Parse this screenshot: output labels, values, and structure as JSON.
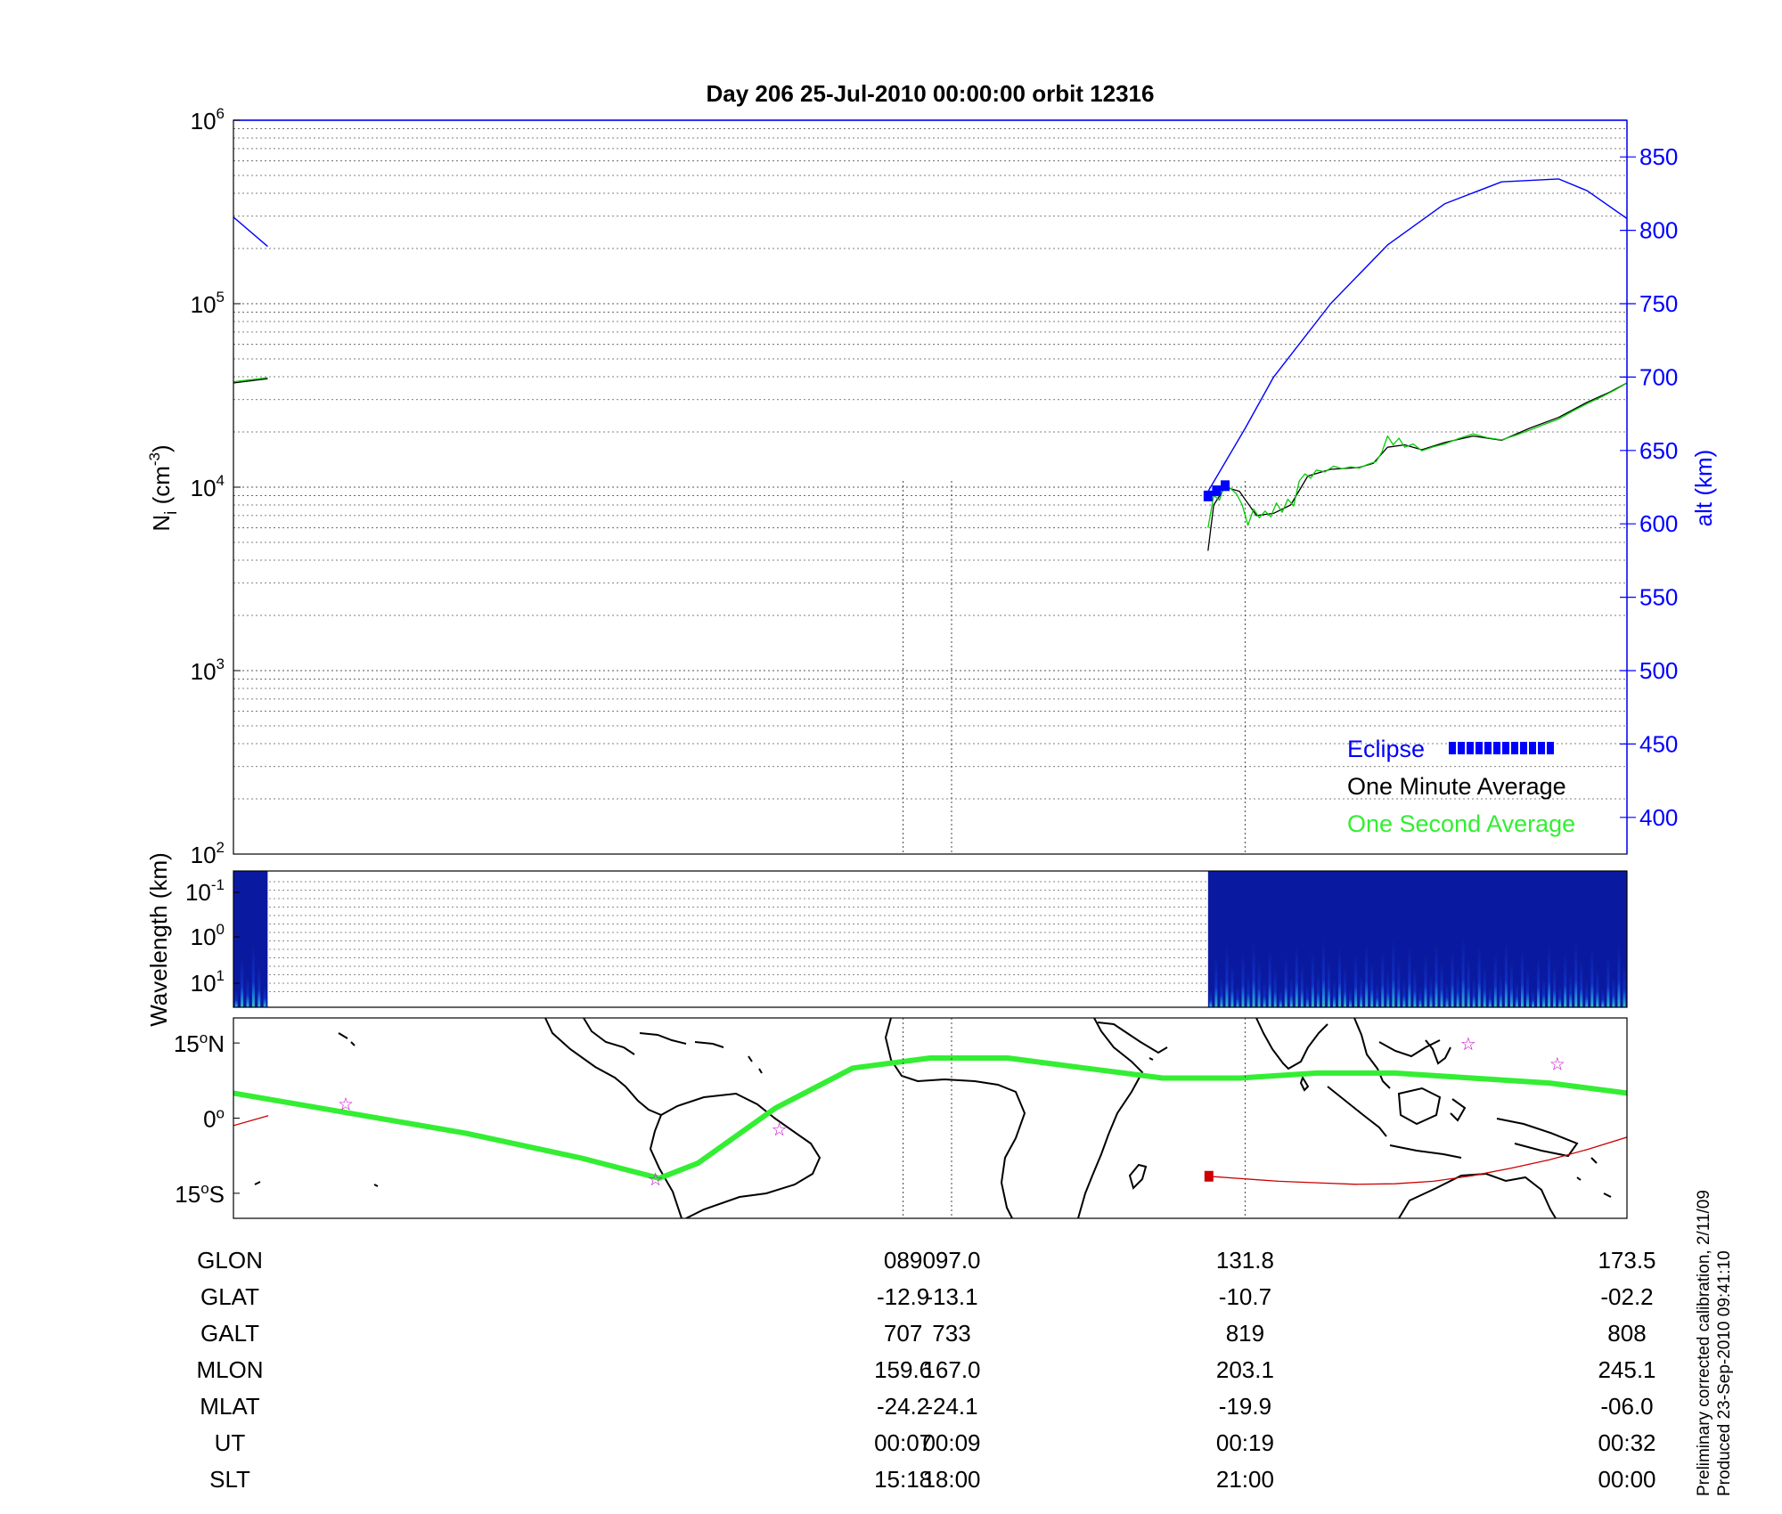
{
  "title": "Day 206  25-Jul-2010 00:00:00   orbit 12316",
  "colors": {
    "altitude": "#0000ff",
    "one_minute": "#000000",
    "one_second": "#00cc00",
    "eclipse": "#0000ff",
    "ground_track": "#33ee33",
    "sat_track": "#cc0000",
    "stars": "#cc00cc",
    "spectrogram_bg": "#0a1aa0"
  },
  "chart_data": [
    {
      "type": "line",
      "panel": "ion density and altitude",
      "ylabel_left": "N_i (cm^-3)",
      "ylabel_right": "alt (km)",
      "yscale_left": "log",
      "ylim_left": [
        100,
        1000000
      ],
      "left_ticks": [
        {
          "base": "10",
          "exp": "2"
        },
        {
          "base": "10",
          "exp": "3"
        },
        {
          "base": "10",
          "exp": "4"
        },
        {
          "base": "10",
          "exp": "5"
        },
        {
          "base": "10",
          "exp": "6"
        }
      ],
      "ylim_right": [
        375,
        875
      ],
      "right_ticks": [
        "400",
        "450",
        "500",
        "550",
        "600",
        "650",
        "700",
        "750",
        "800",
        "850"
      ],
      "xlim_minutes": [
        -16.5,
        32.4
      ],
      "grid": true,
      "legend_placement": "bottom-right",
      "legend": {
        "eclipse": "Eclipse",
        "one_minute": "One Minute Average",
        "one_second": "One Second Average"
      },
      "series": [
        {
          "name": "alt (km)",
          "axis": "right",
          "segments": [
            {
              "x": [
                -16.5,
                -15.3
              ],
              "y": [
                809,
                789
              ]
            },
            {
              "x": [
                17.7,
                19.0,
                20.0,
                22.0,
                24.0,
                26.0,
                28.0,
                30.0,
                31.0,
                32.4
              ],
              "y": [
                622,
                665,
                700,
                750,
                790,
                818,
                833,
                835,
                827,
                808
              ]
            }
          ]
        },
        {
          "name": "One Minute Average",
          "axis": "left",
          "segments": [
            {
              "x": [
                -16.5,
                -15.3
              ],
              "y": [
                37000,
                39000
              ]
            },
            {
              "x": [
                17.7,
                17.9,
                18.3,
                18.8,
                19.4,
                20.0,
                20.6,
                21.2,
                22.0,
                23.0,
                23.5,
                24.0,
                24.6,
                25.2,
                26.0,
                27.0,
                28.0,
                29.0,
                30.0,
                31.0,
                31.8,
                32.4
              ],
              "y": [
                4500,
                8000,
                10000,
                9500,
                7000,
                7200,
                8000,
                11500,
                12500,
                12800,
                13500,
                16500,
                17000,
                16000,
                17500,
                19000,
                18000,
                21000,
                24000,
                29000,
                33000,
                37000
              ]
            }
          ]
        },
        {
          "name": "One Second Average",
          "axis": "left",
          "segments": [
            {
              "x": [
                -16.5,
                -15.3
              ],
              "y": [
                37500,
                39500
              ]
            },
            {
              "x": [
                17.7,
                17.9,
                18.1,
                18.3,
                18.5,
                18.7,
                18.9,
                19.1,
                19.3,
                19.5,
                19.7,
                19.9,
                20.1,
                20.3,
                20.5,
                20.7,
                20.9,
                21.1,
                21.3,
                21.5,
                21.8,
                22.1,
                22.4,
                22.7,
                23.0,
                23.3,
                23.6,
                23.8,
                24.0,
                24.2,
                24.4,
                24.6,
                24.9,
                25.2,
                25.6,
                26.0,
                26.5,
                27.0,
                27.5,
                28.0,
                28.5,
                29.0,
                29.5,
                30.0,
                30.5,
                31.0,
                31.5,
                32.0,
                32.4
              ],
              "y": [
                6000,
                9000,
                8500,
                10500,
                9800,
                9200,
                8000,
                6200,
                7600,
                6800,
                7400,
                6900,
                8200,
                7300,
                8600,
                7900,
                10800,
                11800,
                11200,
                12400,
                12100,
                13000,
                12600,
                12900,
                12700,
                13300,
                13800,
                15500,
                19000,
                17000,
                18500,
                16500,
                17200,
                15800,
                16600,
                17200,
                18400,
                19500,
                18600,
                18100,
                19200,
                20500,
                22000,
                23500,
                26000,
                28500,
                31000,
                34000,
                37000
              ]
            }
          ]
        },
        {
          "name": "Eclipse",
          "axis": "right",
          "segments": [
            {
              "x": [
                17.7,
                18.3
              ],
              "y": [
                619,
                626
              ]
            }
          ]
        }
      ]
    },
    {
      "type": "heatmap",
      "panel": "spectrogram",
      "ylabel": "Wavelength (km)",
      "y_ticks": [
        {
          "base": "10",
          "exp": "-1"
        },
        {
          "base": "10",
          "exp": "0"
        },
        {
          "base": "10",
          "exp": "1"
        }
      ],
      "data_x_ranges_minutes": [
        [
          -16.5,
          -15.3
        ],
        [
          17.7,
          32.4
        ]
      ],
      "gap_x_range_minutes": [
        -15.3,
        17.7
      ],
      "colormap": "jet",
      "grid": true
    },
    {
      "type": "scatter",
      "panel": "map",
      "xlim_lon": [
        -180,
        180
      ],
      "ylim_lat": [
        -20,
        20
      ],
      "lat_ticks": [
        {
          "deg": "15",
          "hemi": "N",
          "value": 15
        },
        {
          "deg": "0",
          "hemi": "",
          "value": 0
        },
        {
          "deg": "15",
          "hemi": "S",
          "value": -15
        }
      ],
      "series": [
        {
          "name": "",
          "kind": "magnetic equator",
          "lon": [
            -180,
            -150,
            -120,
            -90,
            -70,
            -60,
            -40,
            -20,
            0,
            20,
            40,
            60,
            80,
            100,
            120,
            140,
            160,
            180
          ],
          "lat": [
            5,
            1,
            -3,
            -8,
            -12,
            -9,
            2,
            10,
            12,
            12,
            10,
            8,
            8,
            9,
            9,
            8,
            7,
            5
          ]
        },
        {
          "name": "",
          "kind": "satellite track",
          "lon": [
            -180,
            -171,
            72,
            90,
            100,
            110,
            120,
            130,
            140,
            150,
            160,
            170,
            180
          ],
          "lat": [
            -1.5,
            0.5,
            -11.6,
            -12.6,
            -12.9,
            -13.2,
            -13.1,
            -12.6,
            -11.5,
            -10.0,
            -8.3,
            -6.2,
            -3.8
          ]
        },
        {
          "name": "",
          "kind": "start marker",
          "lon": [
            72
          ],
          "lat": [
            -11.6
          ]
        },
        {
          "name": "",
          "kind": "stars",
          "lon": [
            -151,
            -71,
            -39,
            139,
            162
          ],
          "lat": [
            3,
            -12,
            -2,
            15,
            11
          ]
        }
      ]
    }
  ],
  "table": {
    "rows": [
      {
        "label": "GLON",
        "values": [
          "089",
          "097.0",
          "131.8",
          "173.5"
        ]
      },
      {
        "label": "GLAT",
        "values": [
          "-12.9",
          "-13.1",
          "-10.7",
          "-02.2"
        ]
      },
      {
        "label": "GALT",
        "values": [
          "707",
          "733",
          "819",
          "808"
        ]
      },
      {
        "label": "MLON",
        "values": [
          "159.6",
          "167.0",
          "203.1",
          "245.1"
        ]
      },
      {
        "label": "MLAT",
        "values": [
          "-24.2",
          "-24.1",
          "-19.9",
          "-06.0"
        ]
      },
      {
        "label": "UT",
        "values": [
          "00:07",
          "00:09",
          "00:19",
          "00:32"
        ]
      },
      {
        "label": "SLT",
        "values": [
          "15:18",
          "18:00",
          "21:00",
          "00:00"
        ]
      }
    ],
    "marker_times_minutes": [
      7.0,
      8.7,
      19.0,
      32.4
    ]
  },
  "footer": {
    "line1": "Preliminary corrected calibration, 2/11/09",
    "line2": "Produced 23-Sep-2010 09:41:10"
  }
}
